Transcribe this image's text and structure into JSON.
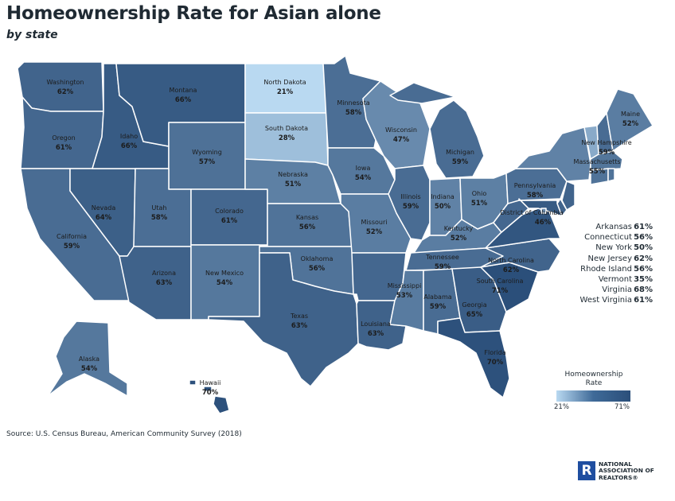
{
  "title": "Homeownership Rate for Asian alone",
  "subtitle": "by state",
  "source": "Source: U.S. Census Bureau, American Community Survey (2018)",
  "legend": {
    "title_line1": "Homeownership",
    "title_line2": "Rate",
    "min_label": "21%",
    "max_label": "71%",
    "min": 21,
    "max": 71,
    "colors": {
      "low": "#b9d9f1",
      "high": "#2b4f7a"
    }
  },
  "states": {
    "washington": {
      "name": "Washington",
      "value_label": "62%",
      "value": 62
    },
    "oregon": {
      "name": "Oregon",
      "value_label": "61%",
      "value": 61
    },
    "california": {
      "name": "California",
      "value_label": "59%",
      "value": 59
    },
    "nevada": {
      "name": "Nevada",
      "value_label": "64%",
      "value": 64
    },
    "idaho": {
      "name": "Idaho",
      "value_label": "66%",
      "value": 66
    },
    "montana": {
      "name": "Montana",
      "value_label": "66%",
      "value": 66
    },
    "wyoming": {
      "name": "Wyoming",
      "value_label": "57%",
      "value": 57
    },
    "utah": {
      "name": "Utah",
      "value_label": "58%",
      "value": 58
    },
    "arizona": {
      "name": "Arizona",
      "value_label": "63%",
      "value": 63
    },
    "colorado": {
      "name": "Colorado",
      "value_label": "61%",
      "value": 61
    },
    "new_mexico": {
      "name": "New Mexico",
      "value_label": "54%",
      "value": 54
    },
    "north_dakota": {
      "name": "North Dakota",
      "value_label": "21%",
      "value": 21
    },
    "south_dakota": {
      "name": "South Dakota",
      "value_label": "28%",
      "value": 28
    },
    "nebraska": {
      "name": "Nebraska",
      "value_label": "51%",
      "value": 51
    },
    "kansas": {
      "name": "Kansas",
      "value_label": "56%",
      "value": 56
    },
    "oklahoma": {
      "name": "Oklahoma",
      "value_label": "56%",
      "value": 56
    },
    "texas": {
      "name": "Texas",
      "value_label": "63%",
      "value": 63
    },
    "minnesota": {
      "name": "Minnesota",
      "value_label": "58%",
      "value": 58
    },
    "iowa": {
      "name": "Iowa",
      "value_label": "54%",
      "value": 54
    },
    "missouri": {
      "name": "Missouri",
      "value_label": "52%",
      "value": 52
    },
    "arkansas": {
      "name": "Arkansas",
      "value_label": "61%",
      "value": 61
    },
    "louisiana": {
      "name": "Louisiana",
      "value_label": "63%",
      "value": 63
    },
    "wisconsin": {
      "name": "Wisconsin",
      "value_label": "47%",
      "value": 47
    },
    "illinois": {
      "name": "Illinois",
      "value_label": "59%",
      "value": 59
    },
    "michigan": {
      "name": "Michigan",
      "value_label": "59%",
      "value": 59
    },
    "indiana": {
      "name": "Indiana",
      "value_label": "50%",
      "value": 50
    },
    "ohio": {
      "name": "Ohio",
      "value_label": "51%",
      "value": 51
    },
    "kentucky": {
      "name": "Kentucky",
      "value_label": "52%",
      "value": 52
    },
    "tennessee": {
      "name": "Tennessee",
      "value_label": "59%",
      "value": 59
    },
    "mississippi": {
      "name": "Mississippi",
      "value_label": "53%",
      "value": 53
    },
    "alabama": {
      "name": "Alabama",
      "value_label": "59%",
      "value": 59
    },
    "georgia": {
      "name": "Georgia",
      "value_label": "65%",
      "value": 65
    },
    "florida": {
      "name": "Florida",
      "value_label": "70%",
      "value": 70
    },
    "south_carolina": {
      "name": "South Carolina",
      "value_label": "71%",
      "value": 71
    },
    "north_carolina": {
      "name": "North Carolina",
      "value_label": "62%",
      "value": 62
    },
    "virginia": {
      "name": "Virginia",
      "value_label": "68%",
      "value": 68
    },
    "west_virginia": {
      "name": "West Virginia",
      "value_label": "61%",
      "value": 61
    },
    "pennsylvania": {
      "name": "Pennsylvania",
      "value_label": "58%",
      "value": 58
    },
    "new_york": {
      "name": "New York",
      "value_label": "50%",
      "value": 50
    },
    "vermont": {
      "name": "Vermont",
      "value_label": "35%",
      "value": 35
    },
    "new_hampshire": {
      "name": "New Hampshire",
      "value_label": "59%",
      "value": 59
    },
    "maine": {
      "name": "Maine",
      "value_label": "52%",
      "value": 52
    },
    "massachusetts": {
      "name": "Massachusetts",
      "value_label": "55%",
      "value": 55
    },
    "connecticut": {
      "name": "Connecticut",
      "value_label": "56%",
      "value": 56
    },
    "rhode_island": {
      "name": "Rhode Island",
      "value_label": "56%",
      "value": 56
    },
    "new_jersey": {
      "name": "New Jersey",
      "value_label": "62%",
      "value": 62
    },
    "delaware": {
      "value": 62
    },
    "maryland": {
      "value": 66
    },
    "district_of_columbia": {
      "name": "District of Columbia",
      "value_label": "46%",
      "value": 46
    },
    "alaska": {
      "name": "Alaska",
      "value_label": "54%",
      "value": 54
    },
    "hawaii": {
      "name": "Hawaii",
      "value_label": "70%",
      "value": 70
    }
  },
  "side_list": [
    {
      "name": "Arkansas",
      "value": "61%"
    },
    {
      "name": "Connecticut",
      "value": "56%"
    },
    {
      "name": "New York",
      "value": "50%"
    },
    {
      "name": "New Jersey",
      "value": "62%"
    },
    {
      "name": "Rhode Island",
      "value": "56%"
    },
    {
      "name": "Vermont",
      "value": "35%"
    },
    {
      "name": "Virginia",
      "value": "68%"
    },
    {
      "name": "West Virginia",
      "value": "61%"
    }
  ],
  "logo": {
    "letter": "R",
    "line1": "NATIONAL",
    "line2": "ASSOCIATION OF",
    "line3": "REALTORS®"
  }
}
